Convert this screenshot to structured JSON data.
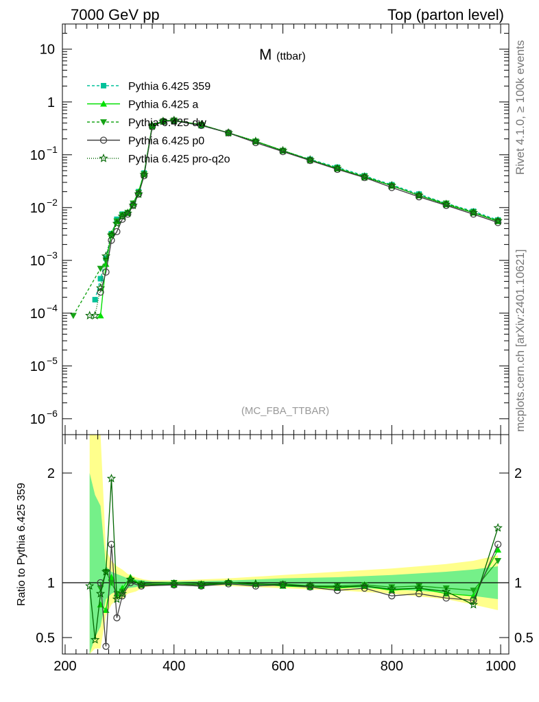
{
  "header": {
    "left": "7000 GeV pp",
    "right": "Top (parton level)"
  },
  "side_labels": {
    "rivet": "Rivet 4.1.0, ≥ 100k events",
    "mcplots": "mcplots.cern.ch [arXiv:2401.10621]"
  },
  "chart_data": [
    {
      "type": "line",
      "title_main": "M",
      "title_sub": "(ttbar)",
      "watermark": "(MC_FBA_TTBAR)",
      "xlim": [
        195,
        1015
      ],
      "ylim": [
        5e-07,
        30
      ],
      "yscale": "log",
      "x_ticks": [
        200,
        400,
        600,
        800,
        1000
      ],
      "y_ticks": [
        {
          "value": 10,
          "label": "10"
        },
        {
          "value": 1,
          "label": "1"
        },
        {
          "value": 0.1,
          "label": "10",
          "exp": "−1"
        },
        {
          "value": 0.01,
          "label": "10",
          "exp": "−2"
        },
        {
          "value": 0.001,
          "label": "10",
          "exp": "−3"
        },
        {
          "value": 0.0001,
          "label": "10",
          "exp": "−4"
        },
        {
          "value": 1e-05,
          "label": "10",
          "exp": "−5"
        },
        {
          "value": 1e-06,
          "label": "10",
          "exp": "−6"
        }
      ],
      "legend_position": "top-left",
      "series": [
        {
          "name": "Pythia 6.425 359",
          "color": "#00c29a",
          "marker": "square",
          "dash": "4,3",
          "points": [
            [
              255,
              0.00018
            ],
            [
              265,
              0.00045
            ],
            [
              275,
              0.0011
            ],
            [
              285,
              0.0032
            ],
            [
              295,
              0.006
            ],
            [
              305,
              0.0075
            ],
            [
              315,
              0.008
            ],
            [
              325,
              0.012
            ],
            [
              335,
              0.02
            ],
            [
              345,
              0.045
            ],
            [
              360,
              0.35
            ],
            [
              380,
              0.43
            ],
            [
              400,
              0.44
            ],
            [
              450,
              0.36
            ],
            [
              500,
              0.26
            ],
            [
              550,
              0.18
            ],
            [
              600,
              0.12
            ],
            [
              650,
              0.082
            ],
            [
              700,
              0.058
            ],
            [
              750,
              0.04
            ],
            [
              800,
              0.027
            ],
            [
              850,
              0.018
            ],
            [
              900,
              0.012
            ],
            [
              950,
              0.0085
            ],
            [
              995,
              0.0058
            ]
          ]
        },
        {
          "name": "Pythia 6.425 a",
          "color": "#00e000",
          "marker": "triangle-up",
          "dash": "",
          "points": [
            [
              265,
              9e-05
            ],
            [
              275,
              0.00085
            ],
            [
              285,
              0.0032
            ],
            [
              295,
              0.0055
            ],
            [
              305,
              0.0073
            ],
            [
              315,
              0.008
            ],
            [
              325,
              0.012
            ],
            [
              335,
              0.02
            ],
            [
              345,
              0.044
            ],
            [
              360,
              0.36
            ],
            [
              380,
              0.44
            ],
            [
              400,
              0.45
            ],
            [
              450,
              0.37
            ],
            [
              500,
              0.26
            ],
            [
              550,
              0.18
            ],
            [
              600,
              0.12
            ],
            [
              650,
              0.08
            ],
            [
              700,
              0.055
            ],
            [
              750,
              0.038
            ],
            [
              800,
              0.026
            ],
            [
              850,
              0.017
            ],
            [
              900,
              0.0115
            ],
            [
              950,
              0.008
            ],
            [
              995,
              0.0055
            ]
          ]
        },
        {
          "name": "Pythia 6.425 dw",
          "color": "#17a317",
          "marker": "triangle-down",
          "dash": "4,3",
          "points": [
            [
              215,
              9e-05
            ],
            [
              265,
              0.0007
            ],
            [
              275,
              0.001
            ],
            [
              285,
              0.003
            ],
            [
              295,
              0.0055
            ],
            [
              305,
              0.0072
            ],
            [
              315,
              0.008
            ],
            [
              325,
              0.012
            ],
            [
              335,
              0.019
            ],
            [
              345,
              0.043
            ],
            [
              360,
              0.35
            ],
            [
              380,
              0.43
            ],
            [
              400,
              0.45
            ],
            [
              450,
              0.37
            ],
            [
              500,
              0.26
            ],
            [
              550,
              0.18
            ],
            [
              600,
              0.12
            ],
            [
              650,
              0.08
            ],
            [
              700,
              0.056
            ],
            [
              750,
              0.039
            ],
            [
              800,
              0.026
            ],
            [
              850,
              0.017
            ],
            [
              900,
              0.012
            ],
            [
              950,
              0.0082
            ],
            [
              995,
              0.0056
            ]
          ]
        },
        {
          "name": "Pythia 6.425 p0",
          "color": "#404040",
          "marker": "circle-open",
          "dash": "",
          "points": [
            [
              265,
              0.00025
            ],
            [
              275,
              0.0006
            ],
            [
              285,
              0.0024
            ],
            [
              295,
              0.0035
            ],
            [
              305,
              0.006
            ],
            [
              315,
              0.0075
            ],
            [
              325,
              0.011
            ],
            [
              335,
              0.018
            ],
            [
              345,
              0.04
            ],
            [
              360,
              0.34
            ],
            [
              380,
              0.43
            ],
            [
              400,
              0.44
            ],
            [
              450,
              0.36
            ],
            [
              500,
              0.26
            ],
            [
              550,
              0.17
            ],
            [
              600,
              0.115
            ],
            [
              650,
              0.078
            ],
            [
              700,
              0.053
            ],
            [
              750,
              0.037
            ],
            [
              800,
              0.024
            ],
            [
              850,
              0.016
            ],
            [
              900,
              0.011
            ],
            [
              950,
              0.0075
            ],
            [
              995,
              0.0052
            ]
          ]
        },
        {
          "name": "Pythia 6.425 pro-q2o",
          "color": "#006600",
          "marker": "star-open",
          "dash": "1,2",
          "points": [
            [
              245,
              9e-05
            ],
            [
              255,
              9e-05
            ],
            [
              265,
              0.0003
            ],
            [
              275,
              0.0012
            ],
            [
              285,
              0.003
            ],
            [
              295,
              0.005
            ],
            [
              305,
              0.0068
            ],
            [
              315,
              0.0078
            ],
            [
              325,
              0.011
            ],
            [
              335,
              0.018
            ],
            [
              345,
              0.042
            ],
            [
              360,
              0.35
            ],
            [
              380,
              0.43
            ],
            [
              400,
              0.45
            ],
            [
              450,
              0.37
            ],
            [
              500,
              0.26
            ],
            [
              550,
              0.18
            ],
            [
              600,
              0.12
            ],
            [
              650,
              0.08
            ],
            [
              700,
              0.055
            ],
            [
              750,
              0.038
            ],
            [
              800,
              0.026
            ],
            [
              850,
              0.017
            ],
            [
              900,
              0.0115
            ],
            [
              950,
              0.008
            ],
            [
              995,
              0.0056
            ]
          ]
        }
      ]
    },
    {
      "type": "line",
      "ylabel": "Ratio to Pythia 6.425 359",
      "xlim": [
        195,
        1015
      ],
      "ylim": [
        0.35,
        2.35
      ],
      "x_ticks": [
        200,
        400,
        600,
        800,
        1000
      ],
      "y_ticks": [
        {
          "value": 2,
          "label": "2"
        },
        {
          "value": 1,
          "label": "1"
        },
        {
          "value": 0.5,
          "label": "0.5"
        }
      ],
      "bands": [
        {
          "color": "#ffff80",
          "x": [
            245,
            255,
            265,
            275,
            285,
            295,
            305,
            315,
            330,
            345,
            360,
            400,
            500,
            600,
            700,
            800,
            900,
            950,
            995
          ],
          "low": [
            0.35,
            0.4,
            0.4,
            0.7,
            0.8,
            0.85,
            0.85,
            0.9,
            0.92,
            0.96,
            0.97,
            0.98,
            0.97,
            0.95,
            0.93,
            0.9,
            0.85,
            0.8,
            0.75
          ],
          "high": [
            2.35,
            2.35,
            2.35,
            1.3,
            1.2,
            1.15,
            1.12,
            1.08,
            1.05,
            1.03,
            1.02,
            1.02,
            1.04,
            1.07,
            1.1,
            1.13,
            1.17,
            1.2,
            1.25
          ]
        },
        {
          "color": "#66ee88",
          "x": [
            245,
            255,
            265,
            275,
            285,
            295,
            305,
            315,
            330,
            345,
            360,
            400,
            500,
            600,
            700,
            800,
            900,
            950,
            995
          ],
          "low": [
            0.35,
            0.5,
            0.6,
            0.85,
            0.9,
            0.92,
            0.92,
            0.95,
            0.96,
            0.98,
            0.99,
            0.99,
            0.98,
            0.97,
            0.96,
            0.94,
            0.91,
            0.88,
            0.85
          ],
          "high": [
            2.0,
            1.8,
            1.7,
            1.15,
            1.1,
            1.08,
            1.06,
            1.04,
            1.03,
            1.02,
            1.01,
            1.01,
            1.02,
            1.04,
            1.05,
            1.07,
            1.1,
            1.12,
            1.15
          ]
        }
      ],
      "series": [
        {
          "name": "Pythia 6.425 a",
          "color": "#00e000",
          "points": [
            [
              265,
              0.8
            ],
            [
              275,
              0.75
            ],
            [
              285,
              1.05
            ],
            [
              295,
              0.9
            ],
            [
              305,
              0.95
            ],
            [
              320,
              1.05
            ],
            [
              340,
              0.98
            ],
            [
              400,
              0.98
            ],
            [
              450,
              0.97
            ],
            [
              500,
              1.0
            ],
            [
              550,
              0.99
            ],
            [
              600,
              0.97
            ],
            [
              650,
              0.96
            ],
            [
              700,
              0.95
            ],
            [
              750,
              0.97
            ],
            [
              800,
              0.93
            ],
            [
              850,
              0.95
            ],
            [
              900,
              0.9
            ],
            [
              950,
              0.88
            ],
            [
              995,
              1.3
            ]
          ]
        },
        {
          "name": "Pythia 6.425 dw",
          "color": "#17a317",
          "points": [
            [
              265,
              0.95
            ],
            [
              275,
              1.1
            ],
            [
              285,
              1.0
            ],
            [
              295,
              0.9
            ],
            [
              305,
              0.92
            ],
            [
              320,
              1.02
            ],
            [
              340,
              0.99
            ],
            [
              400,
              1.0
            ],
            [
              450,
              0.99
            ],
            [
              500,
              1.0
            ],
            [
              550,
              0.98
            ],
            [
              600,
              0.99
            ],
            [
              650,
              0.97
            ],
            [
              700,
              0.97
            ],
            [
              750,
              0.98
            ],
            [
              800,
              0.96
            ],
            [
              850,
              0.97
            ],
            [
              900,
              0.95
            ],
            [
              950,
              0.93
            ],
            [
              995,
              1.2
            ]
          ]
        },
        {
          "name": "Pythia 6.425 p0",
          "color": "#404040",
          "points": [
            [
              265,
              1.0
            ],
            [
              275,
              0.42
            ],
            [
              285,
              1.35
            ],
            [
              295,
              0.68
            ],
            [
              305,
              0.88
            ],
            [
              320,
              1.0
            ],
            [
              340,
              0.97
            ],
            [
              400,
              0.98
            ],
            [
              450,
              0.97
            ],
            [
              500,
              0.99
            ],
            [
              550,
              0.97
            ],
            [
              600,
              0.98
            ],
            [
              650,
              0.96
            ],
            [
              700,
              0.93
            ],
            [
              750,
              0.95
            ],
            [
              800,
              0.88
            ],
            [
              850,
              0.9
            ],
            [
              900,
              0.86
            ],
            [
              950,
              0.84
            ],
            [
              995,
              1.35
            ]
          ]
        },
        {
          "name": "Pythia 6.425 pro-q2o",
          "color": "#006600",
          "points": [
            [
              245,
              0.97
            ],
            [
              255,
              0.48
            ],
            [
              265,
              0.9
            ],
            [
              275,
              1.1
            ],
            [
              285,
              1.95
            ],
            [
              295,
              0.85
            ],
            [
              305,
              0.9
            ],
            [
              320,
              1.03
            ],
            [
              340,
              0.98
            ],
            [
              400,
              0.99
            ],
            [
              450,
              0.98
            ],
            [
              500,
              1.0
            ],
            [
              550,
              0.99
            ],
            [
              600,
              0.98
            ],
            [
              650,
              0.97
            ],
            [
              700,
              0.96
            ],
            [
              750,
              0.97
            ],
            [
              800,
              0.94
            ],
            [
              850,
              0.95
            ],
            [
              900,
              0.92
            ],
            [
              950,
              0.8
            ],
            [
              995,
              1.5
            ]
          ]
        }
      ]
    }
  ]
}
